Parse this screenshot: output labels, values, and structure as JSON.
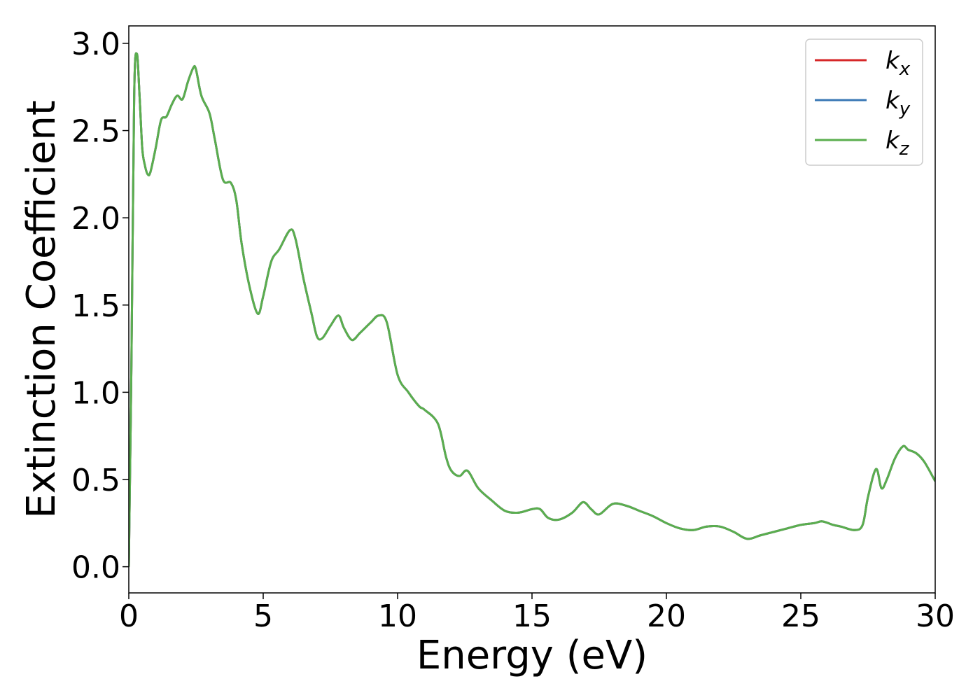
{
  "chart_data": {
    "type": "line",
    "title": "",
    "xlabel": "Energy (eV)",
    "ylabel": "Extinction Coefficient",
    "xlim": [
      0,
      30
    ],
    "ylim": [
      -0.15,
      3.1
    ],
    "xticks": [
      0,
      5,
      10,
      15,
      20,
      25,
      30
    ],
    "xtick_labels": [
      "0",
      "5",
      "10",
      "15",
      "20",
      "25",
      "30"
    ],
    "yticks": [
      0.0,
      0.5,
      1.0,
      1.5,
      2.0,
      2.5,
      3.0
    ],
    "ytick_labels": [
      "0.0",
      "0.5",
      "1.0",
      "1.5",
      "2.0",
      "2.5",
      "3.0"
    ],
    "grid": false,
    "legend_position": "top-right",
    "series": [
      {
        "name": "k_x",
        "legend_base": "k",
        "legend_sub": "x",
        "color": "#d62728",
        "x": [
          0,
          0.1,
          0.2,
          0.3,
          0.4,
          0.5,
          0.6,
          0.7,
          0.8,
          1.0,
          1.2,
          1.4,
          1.6,
          1.8,
          2.0,
          2.2,
          2.4,
          2.5,
          2.7,
          3.0,
          3.2,
          3.5,
          3.8,
          4.0,
          4.2,
          4.5,
          4.8,
          5.0,
          5.3,
          5.6,
          6.0,
          6.2,
          6.5,
          6.8,
          7.0,
          7.2,
          7.5,
          7.8,
          8.0,
          8.3,
          8.6,
          9.0,
          9.3,
          9.6,
          10.0,
          10.4,
          10.8,
          11.0,
          11.5,
          11.8,
          12.0,
          12.3,
          12.6,
          13.0,
          13.5,
          14.0,
          14.5,
          15.0,
          15.3,
          15.6,
          16.0,
          16.5,
          16.9,
          17.2,
          17.5,
          18.0,
          18.5,
          19.0,
          19.5,
          20.0,
          20.5,
          21.0,
          21.5,
          22.0,
          22.5,
          23.0,
          23.5,
          24.0,
          24.5,
          25.0,
          25.5,
          25.8,
          26.2,
          26.5,
          27.0,
          27.3,
          27.5,
          27.8,
          28.0,
          28.2,
          28.5,
          28.8,
          29.0,
          29.3,
          29.6,
          30.0
        ],
        "values": [
          0.0,
          1.2,
          2.7,
          2.94,
          2.7,
          2.4,
          2.3,
          2.25,
          2.26,
          2.4,
          2.56,
          2.58,
          2.65,
          2.7,
          2.68,
          2.78,
          2.86,
          2.85,
          2.7,
          2.6,
          2.45,
          2.22,
          2.2,
          2.1,
          1.85,
          1.6,
          1.45,
          1.55,
          1.75,
          1.82,
          1.93,
          1.88,
          1.65,
          1.45,
          1.32,
          1.31,
          1.38,
          1.44,
          1.37,
          1.3,
          1.34,
          1.4,
          1.44,
          1.4,
          1.1,
          1.0,
          0.92,
          0.9,
          0.82,
          0.63,
          0.55,
          0.52,
          0.55,
          0.45,
          0.38,
          0.32,
          0.31,
          0.33,
          0.33,
          0.28,
          0.27,
          0.31,
          0.37,
          0.33,
          0.3,
          0.36,
          0.35,
          0.32,
          0.29,
          0.25,
          0.22,
          0.21,
          0.23,
          0.23,
          0.2,
          0.16,
          0.18,
          0.2,
          0.22,
          0.24,
          0.25,
          0.26,
          0.24,
          0.23,
          0.21,
          0.24,
          0.4,
          0.56,
          0.45,
          0.5,
          0.62,
          0.69,
          0.67,
          0.65,
          0.6,
          0.49
        ]
      },
      {
        "name": "k_y",
        "legend_base": "k",
        "legend_sub": "y",
        "color": "#3a78b5",
        "x": [
          0,
          0.1,
          0.2,
          0.3,
          0.4,
          0.5,
          0.6,
          0.7,
          0.8,
          1.0,
          1.2,
          1.4,
          1.6,
          1.8,
          2.0,
          2.2,
          2.4,
          2.5,
          2.7,
          3.0,
          3.2,
          3.5,
          3.8,
          4.0,
          4.2,
          4.5,
          4.8,
          5.0,
          5.3,
          5.6,
          6.0,
          6.2,
          6.5,
          6.8,
          7.0,
          7.2,
          7.5,
          7.8,
          8.0,
          8.3,
          8.6,
          9.0,
          9.3,
          9.6,
          10.0,
          10.4,
          10.8,
          11.0,
          11.5,
          11.8,
          12.0,
          12.3,
          12.6,
          13.0,
          13.5,
          14.0,
          14.5,
          15.0,
          15.3,
          15.6,
          16.0,
          16.5,
          16.9,
          17.2,
          17.5,
          18.0,
          18.5,
          19.0,
          19.5,
          20.0,
          20.5,
          21.0,
          21.5,
          22.0,
          22.5,
          23.0,
          23.5,
          24.0,
          24.5,
          25.0,
          25.5,
          25.8,
          26.2,
          26.5,
          27.0,
          27.3,
          27.5,
          27.8,
          28.0,
          28.2,
          28.5,
          28.8,
          29.0,
          29.3,
          29.6,
          30.0
        ],
        "values": [
          0.0,
          1.2,
          2.7,
          2.94,
          2.7,
          2.4,
          2.3,
          2.25,
          2.26,
          2.4,
          2.56,
          2.58,
          2.65,
          2.7,
          2.68,
          2.78,
          2.86,
          2.85,
          2.7,
          2.6,
          2.45,
          2.22,
          2.2,
          2.1,
          1.85,
          1.6,
          1.45,
          1.55,
          1.75,
          1.82,
          1.93,
          1.88,
          1.65,
          1.45,
          1.32,
          1.31,
          1.38,
          1.44,
          1.37,
          1.3,
          1.34,
          1.4,
          1.44,
          1.4,
          1.1,
          1.0,
          0.92,
          0.9,
          0.82,
          0.63,
          0.55,
          0.52,
          0.55,
          0.45,
          0.38,
          0.32,
          0.31,
          0.33,
          0.33,
          0.28,
          0.27,
          0.31,
          0.37,
          0.33,
          0.3,
          0.36,
          0.35,
          0.32,
          0.29,
          0.25,
          0.22,
          0.21,
          0.23,
          0.23,
          0.2,
          0.16,
          0.18,
          0.2,
          0.22,
          0.24,
          0.25,
          0.26,
          0.24,
          0.23,
          0.21,
          0.24,
          0.4,
          0.56,
          0.45,
          0.5,
          0.62,
          0.69,
          0.67,
          0.65,
          0.6,
          0.49
        ]
      },
      {
        "name": "k_z",
        "legend_base": "k",
        "legend_sub": "z",
        "color": "#5aae4e",
        "x": [
          0,
          0.1,
          0.2,
          0.3,
          0.4,
          0.5,
          0.6,
          0.7,
          0.8,
          1.0,
          1.2,
          1.4,
          1.6,
          1.8,
          2.0,
          2.2,
          2.4,
          2.5,
          2.7,
          3.0,
          3.2,
          3.5,
          3.8,
          4.0,
          4.2,
          4.5,
          4.8,
          5.0,
          5.3,
          5.6,
          6.0,
          6.2,
          6.5,
          6.8,
          7.0,
          7.2,
          7.5,
          7.8,
          8.0,
          8.3,
          8.6,
          9.0,
          9.3,
          9.6,
          10.0,
          10.4,
          10.8,
          11.0,
          11.5,
          11.8,
          12.0,
          12.3,
          12.6,
          13.0,
          13.5,
          14.0,
          14.5,
          15.0,
          15.3,
          15.6,
          16.0,
          16.5,
          16.9,
          17.2,
          17.5,
          18.0,
          18.5,
          19.0,
          19.5,
          20.0,
          20.5,
          21.0,
          21.5,
          22.0,
          22.5,
          23.0,
          23.5,
          24.0,
          24.5,
          25.0,
          25.5,
          25.8,
          26.2,
          26.5,
          27.0,
          27.3,
          27.5,
          27.8,
          28.0,
          28.2,
          28.5,
          28.8,
          29.0,
          29.3,
          29.6,
          30.0
        ],
        "values": [
          0.0,
          1.2,
          2.7,
          2.94,
          2.7,
          2.4,
          2.3,
          2.25,
          2.26,
          2.4,
          2.56,
          2.58,
          2.65,
          2.7,
          2.68,
          2.78,
          2.86,
          2.85,
          2.7,
          2.6,
          2.45,
          2.22,
          2.2,
          2.1,
          1.85,
          1.6,
          1.45,
          1.55,
          1.75,
          1.82,
          1.93,
          1.88,
          1.65,
          1.45,
          1.32,
          1.31,
          1.38,
          1.44,
          1.37,
          1.3,
          1.34,
          1.4,
          1.44,
          1.4,
          1.1,
          1.0,
          0.92,
          0.9,
          0.82,
          0.63,
          0.55,
          0.52,
          0.55,
          0.45,
          0.38,
          0.32,
          0.31,
          0.33,
          0.33,
          0.28,
          0.27,
          0.31,
          0.37,
          0.33,
          0.3,
          0.36,
          0.35,
          0.32,
          0.29,
          0.25,
          0.22,
          0.21,
          0.23,
          0.23,
          0.2,
          0.16,
          0.18,
          0.2,
          0.22,
          0.24,
          0.25,
          0.26,
          0.24,
          0.23,
          0.21,
          0.24,
          0.4,
          0.56,
          0.45,
          0.5,
          0.62,
          0.69,
          0.67,
          0.65,
          0.6,
          0.49
        ]
      }
    ]
  }
}
